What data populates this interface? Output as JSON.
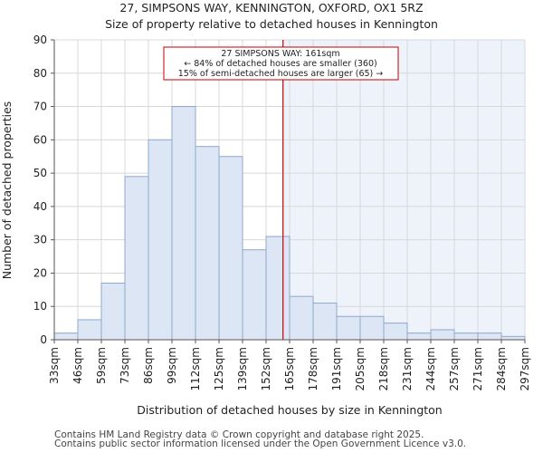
{
  "chart_data": {
    "type": "bar",
    "title": "27, SIMPSONS WAY, KENNINGTON, OXFORD, OX1 5RZ",
    "subtitle": "Size of property relative to detached houses in Kennington",
    "xlabel": "Distribution of detached houses by size in Kennington",
    "ylabel": "Number of detached properties",
    "ylim": [
      0,
      90
    ],
    "yticks": [
      0,
      10,
      20,
      30,
      40,
      50,
      60,
      70,
      80,
      90
    ],
    "bin_edges": [
      "33sqm",
      "46sqm",
      "59sqm",
      "73sqm",
      "86sqm",
      "99sqm",
      "112sqm",
      "125sqm",
      "139sqm",
      "152sqm",
      "165sqm",
      "178sqm",
      "191sqm",
      "205sqm",
      "218sqm",
      "231sqm",
      "244sqm",
      "257sqm",
      "271sqm",
      "284sqm",
      "297sqm"
    ],
    "values": [
      2,
      6,
      17,
      49,
      60,
      70,
      58,
      55,
      27,
      31,
      13,
      11,
      7,
      7,
      5,
      2,
      3,
      2,
      2,
      1
    ],
    "highlight_index": 9.72,
    "annotation": {
      "line1": "27 SIMPSONS WAY: 161sqm",
      "line2": "← 84% of detached houses are smaller (360)",
      "line3": "15% of semi-detached houses are larger (65) →"
    },
    "grid": true,
    "colors": {
      "bar_fill": "#dce6f5",
      "bar_stroke": "#8fa8cc",
      "marker": "#c00000",
      "shaded_region": "#eef2fb",
      "grid": "#d8d8d8",
      "axis": "#555555"
    }
  },
  "footer": {
    "line1": "Contains HM Land Registry data © Crown copyright and database right 2025.",
    "line2": "Contains public sector information licensed under the Open Government Licence v3.0."
  }
}
